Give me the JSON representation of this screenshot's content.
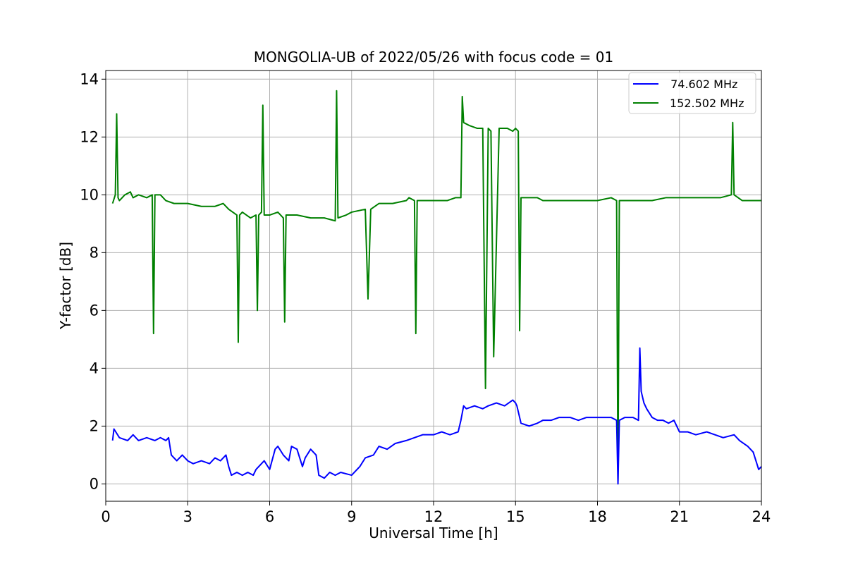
{
  "chart_data": {
    "type": "line",
    "title": "MONGOLIA-UB of 2022/05/26 with focus code = 01",
    "xlabel": "Universal Time [h]",
    "ylabel": "Y-factor [dB]",
    "xlim": [
      0,
      24
    ],
    "ylim": [
      -0.6,
      14.3
    ],
    "xticks": [
      0,
      3,
      6,
      9,
      12,
      15,
      18,
      21,
      24
    ],
    "yticks": [
      0,
      2,
      4,
      6,
      8,
      10,
      12,
      14
    ],
    "grid": true,
    "legend_position": "top-right",
    "series": [
      {
        "name": " 74.602 MHz",
        "color": "#0000ff",
        "x": [
          0.25,
          0.3,
          0.5,
          0.8,
          1.0,
          1.2,
          1.5,
          1.8,
          2.0,
          2.2,
          2.3,
          2.4,
          2.6,
          2.8,
          3.0,
          3.2,
          3.5,
          3.8,
          4.0,
          4.2,
          4.4,
          4.5,
          4.6,
          4.8,
          5.0,
          5.2,
          5.4,
          5.5,
          5.6,
          5.8,
          6.0,
          6.2,
          6.3,
          6.5,
          6.7,
          6.8,
          7.0,
          7.2,
          7.3,
          7.5,
          7.7,
          7.8,
          8.0,
          8.2,
          8.4,
          8.6,
          8.8,
          9.0,
          9.1,
          9.3,
          9.5,
          9.8,
          10.0,
          10.3,
          10.6,
          11.0,
          11.3,
          11.6,
          12.0,
          12.3,
          12.6,
          12.9,
          13.0,
          13.1,
          13.2,
          13.5,
          13.8,
          14.0,
          14.3,
          14.6,
          14.9,
          15.0,
          15.05,
          15.2,
          15.5,
          15.8,
          16.0,
          16.3,
          16.6,
          17.0,
          17.3,
          17.6,
          18.0,
          18.3,
          18.5,
          18.7,
          18.75,
          18.8,
          19.0,
          19.3,
          19.5,
          19.55,
          19.6,
          19.7,
          19.8,
          20.0,
          20.2,
          20.4,
          20.6,
          20.8,
          21.0,
          21.3,
          21.6,
          22.0,
          22.3,
          22.6,
          23.0,
          23.2,
          23.5,
          23.7,
          23.8,
          23.9,
          24.0
        ],
        "values": [
          1.5,
          1.9,
          1.6,
          1.5,
          1.7,
          1.5,
          1.6,
          1.5,
          1.6,
          1.5,
          1.6,
          1.0,
          0.8,
          1.0,
          0.8,
          0.7,
          0.8,
          0.7,
          0.9,
          0.8,
          1.0,
          0.6,
          0.3,
          0.4,
          0.3,
          0.4,
          0.3,
          0.5,
          0.6,
          0.8,
          0.5,
          1.2,
          1.3,
          1.0,
          0.8,
          1.3,
          1.2,
          0.6,
          0.9,
          1.2,
          1.0,
          0.3,
          0.2,
          0.4,
          0.3,
          0.4,
          0.35,
          0.3,
          0.4,
          0.6,
          0.9,
          1.0,
          1.3,
          1.2,
          1.4,
          1.5,
          1.6,
          1.7,
          1.7,
          1.8,
          1.7,
          1.8,
          2.2,
          2.7,
          2.6,
          2.7,
          2.6,
          2.7,
          2.8,
          2.7,
          2.9,
          2.8,
          2.7,
          2.1,
          2.0,
          2.1,
          2.2,
          2.2,
          2.3,
          2.3,
          2.2,
          2.3,
          2.3,
          2.3,
          2.3,
          2.2,
          0.0,
          2.2,
          2.3,
          2.3,
          2.2,
          4.7,
          3.2,
          2.8,
          2.6,
          2.3,
          2.2,
          2.2,
          2.1,
          2.2,
          1.8,
          1.8,
          1.7,
          1.8,
          1.7,
          1.6,
          1.7,
          1.5,
          1.3,
          1.1,
          0.8,
          0.5,
          0.6
        ]
      },
      {
        "name": "152.502 MHz",
        "color": "#008000",
        "x": [
          0.25,
          0.35,
          0.4,
          0.45,
          0.5,
          0.7,
          0.9,
          1.0,
          1.2,
          1.5,
          1.7,
          1.75,
          1.8,
          2.0,
          2.1,
          2.2,
          2.5,
          3.0,
          3.5,
          4.0,
          4.3,
          4.5,
          4.8,
          4.85,
          4.9,
          5.0,
          5.3,
          5.5,
          5.55,
          5.6,
          5.7,
          5.75,
          5.8,
          6.0,
          6.3,
          6.5,
          6.55,
          6.6,
          7.0,
          7.5,
          8.0,
          8.4,
          8.45,
          8.5,
          8.8,
          9.0,
          9.5,
          9.6,
          9.7,
          10.0,
          10.5,
          11.0,
          11.1,
          11.3,
          11.35,
          11.4,
          11.7,
          12.0,
          12.2,
          12.5,
          12.8,
          13.0,
          13.05,
          13.1,
          13.3,
          13.6,
          13.8,
          13.9,
          14.0,
          14.1,
          14.2,
          14.4,
          14.7,
          14.9,
          15.0,
          15.1,
          15.15,
          15.2,
          15.5,
          15.8,
          16.0,
          16.5,
          17.0,
          17.5,
          18.0,
          18.5,
          18.7,
          18.75,
          18.8,
          19.0,
          19.5,
          20.0,
          20.5,
          21.0,
          21.5,
          22.0,
          22.5,
          22.9,
          22.95,
          23.0,
          23.3,
          23.6,
          24.0
        ],
        "values": [
          9.7,
          10.0,
          12.8,
          9.9,
          9.8,
          10.0,
          10.1,
          9.9,
          10.0,
          9.9,
          10.0,
          5.2,
          10.0,
          10.0,
          9.9,
          9.8,
          9.7,
          9.7,
          9.6,
          9.6,
          9.7,
          9.5,
          9.3,
          4.9,
          9.3,
          9.4,
          9.2,
          9.3,
          6.0,
          9.3,
          9.4,
          13.1,
          9.3,
          9.3,
          9.4,
          9.2,
          5.6,
          9.3,
          9.3,
          9.2,
          9.2,
          9.1,
          13.6,
          9.2,
          9.3,
          9.4,
          9.5,
          6.4,
          9.5,
          9.7,
          9.7,
          9.8,
          9.9,
          9.8,
          5.2,
          9.8,
          9.8,
          9.8,
          9.8,
          9.8,
          9.9,
          9.9,
          13.4,
          12.5,
          12.4,
          12.3,
          12.3,
          3.3,
          12.3,
          12.2,
          4.4,
          12.3,
          12.3,
          12.2,
          12.3,
          12.2,
          5.3,
          9.9,
          9.9,
          9.9,
          9.8,
          9.8,
          9.8,
          9.8,
          9.8,
          9.9,
          9.8,
          0.1,
          9.8,
          9.8,
          9.8,
          9.8,
          9.9,
          9.9,
          9.9,
          9.9,
          9.9,
          10.0,
          12.5,
          10.0,
          9.8,
          9.8,
          9.8
        ]
      }
    ]
  }
}
